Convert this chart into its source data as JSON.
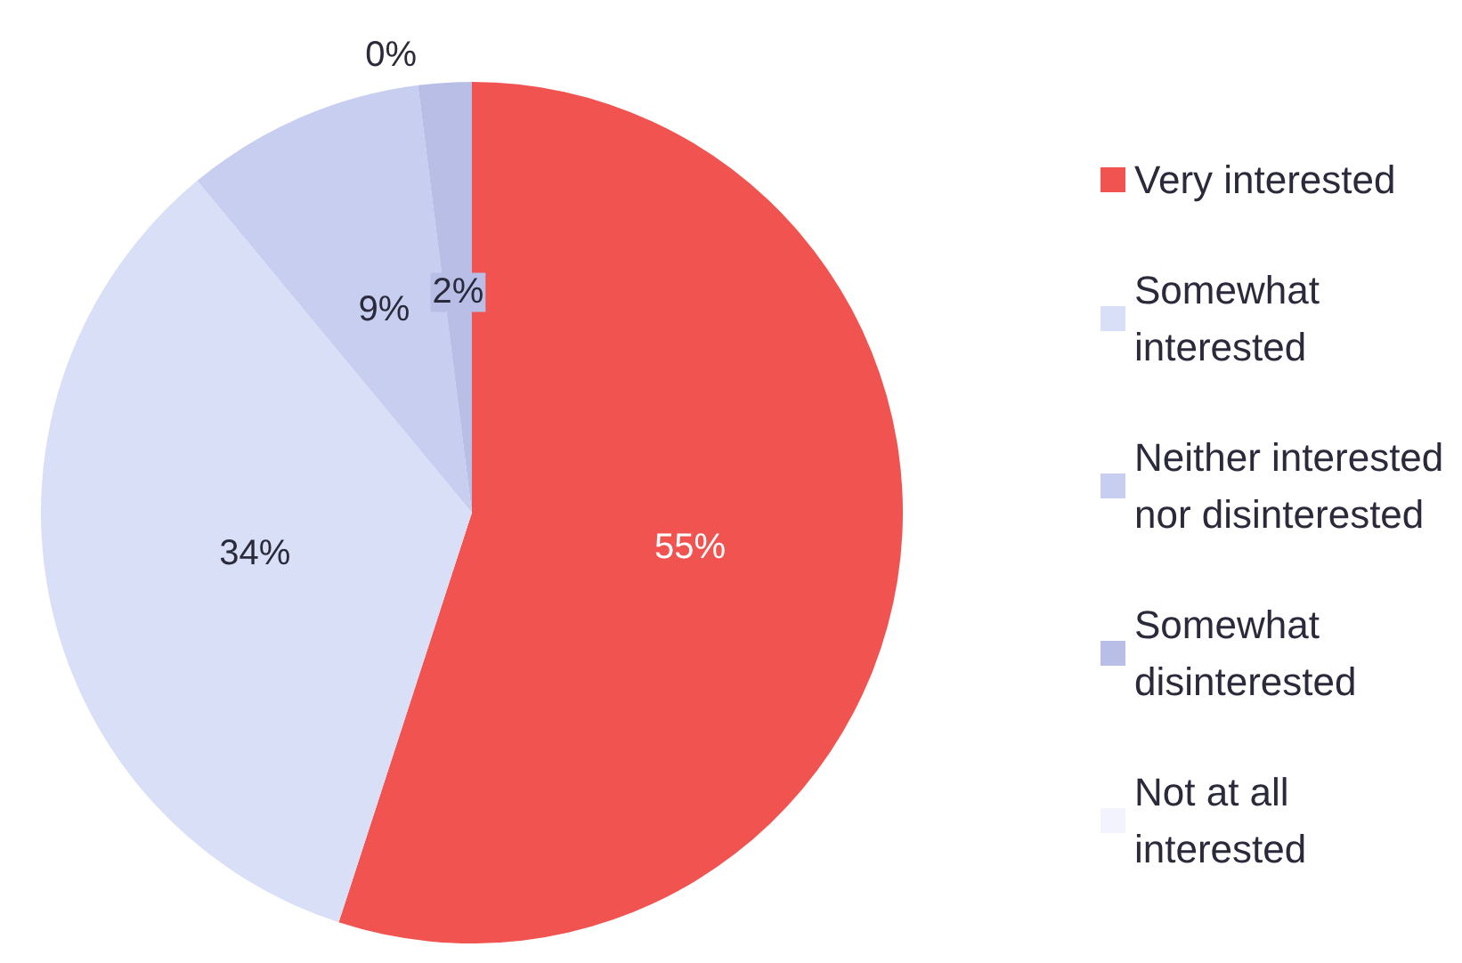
{
  "chart_data": {
    "type": "pie",
    "categories": [
      "Very interested",
      "Somewhat interested",
      "Neither interested nor disinterested",
      "Somewhat disinterested",
      "Not at all interested"
    ],
    "values": [
      55,
      34,
      9,
      2,
      0
    ],
    "colors": [
      "#f05350",
      "#d8dff7",
      "#c8cef0",
      "#b8bee6",
      "#f2f3fc"
    ],
    "value_labels": [
      "55%",
      "34%",
      "9%",
      "2%",
      "0%"
    ],
    "legend": "right"
  }
}
